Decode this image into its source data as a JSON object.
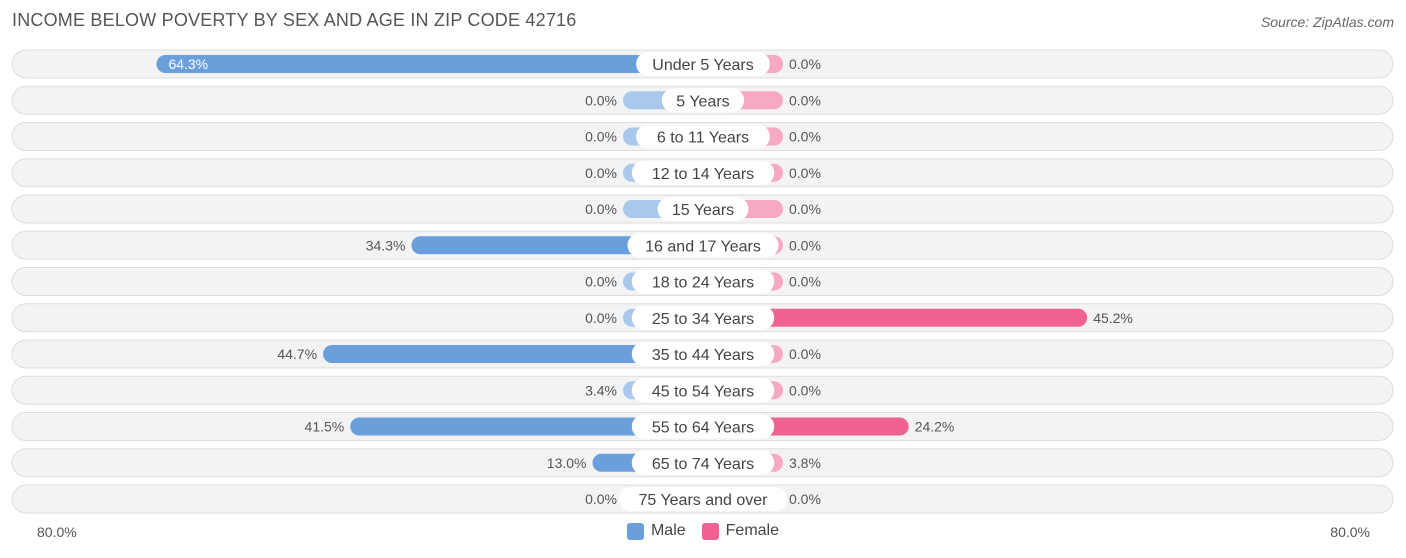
{
  "title": "INCOME BELOW POVERTY BY SEX AND AGE IN ZIP CODE 42716",
  "source": "Source: ZipAtlas.com",
  "colors": {
    "male": "#6a9fdc",
    "male_light": "#a8c8ec",
    "female": "#f06292",
    "female_light": "#f7a8c4"
  },
  "axis": {
    "left_label": "80.0%",
    "right_label": "80.0%"
  },
  "legend": {
    "male": "Male",
    "female": "Female"
  },
  "chart_data": {
    "type": "bar",
    "orientation": "horizontal-diverging",
    "categories": [
      "Under 5 Years",
      "5 Years",
      "6 to 11 Years",
      "12 to 14 Years",
      "15 Years",
      "16 and 17 Years",
      "18 to 24 Years",
      "25 to 34 Years",
      "35 to 44 Years",
      "45 to 54 Years",
      "55 to 64 Years",
      "65 to 74 Years",
      "75 Years and over"
    ],
    "series": [
      {
        "name": "Male",
        "values": [
          64.3,
          0.0,
          0.0,
          0.0,
          0.0,
          34.3,
          0.0,
          0.0,
          44.7,
          3.4,
          41.5,
          13.0,
          0.0
        ],
        "labels": [
          "64.3%",
          "0.0%",
          "0.0%",
          "0.0%",
          "0.0%",
          "34.3%",
          "0.0%",
          "0.0%",
          "44.7%",
          "3.4%",
          "41.5%",
          "13.0%",
          "0.0%"
        ]
      },
      {
        "name": "Female",
        "values": [
          0.0,
          0.0,
          0.0,
          0.0,
          0.0,
          0.0,
          0.0,
          45.2,
          0.0,
          0.0,
          24.2,
          3.8,
          0.0
        ],
        "labels": [
          "0.0%",
          "0.0%",
          "0.0%",
          "0.0%",
          "0.0%",
          "0.0%",
          "0.0%",
          "45.2%",
          "0.0%",
          "0.0%",
          "24.2%",
          "3.8%",
          "0.0%"
        ]
      }
    ],
    "xlim": [
      -80,
      80
    ],
    "legend_position": "bottom-center"
  }
}
